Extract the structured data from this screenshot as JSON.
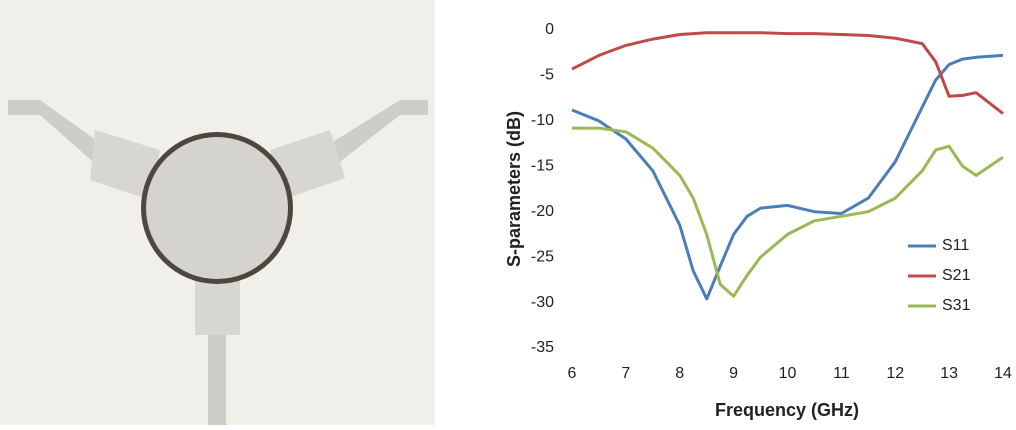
{
  "chart_data": {
    "type": "line",
    "x_label": "Frequency (GHz)",
    "y_label": "S-parameters (dB)",
    "x": [
      6,
      6.5,
      7,
      7.5,
      8,
      8.25,
      8.5,
      8.75,
      9,
      9.25,
      9.5,
      10,
      10.5,
      11,
      11.5,
      12,
      12.5,
      12.75,
      13,
      13.25,
      13.5,
      14
    ],
    "series": [
      {
        "name": "S11",
        "color": "#4a7ebb",
        "values": [
          -8.8,
          -10,
          -12,
          -15.5,
          -21.5,
          -26.5,
          -29.6,
          -26,
          -22.5,
          -20.5,
          -19.6,
          -19.3,
          -20,
          -20.2,
          -18.5,
          -14.5,
          -8.5,
          -5.5,
          -3.8,
          -3.2,
          -3,
          -2.8
        ]
      },
      {
        "name": "S21",
        "color": "#be4b48",
        "values": [
          -4.3,
          -2.8,
          -1.7,
          -1,
          -0.5,
          -0.4,
          -0.3,
          -0.3,
          -0.3,
          -0.3,
          -0.3,
          -0.4,
          -0.4,
          -0.5,
          -0.6,
          -0.9,
          -1.5,
          -3.5,
          -7.3,
          -7.2,
          -6.9,
          -9.2
        ]
      },
      {
        "name": "S31",
        "color": "#98b954",
        "values": [
          -10.8,
          -10.8,
          -11.2,
          -13,
          -16,
          -18.5,
          -22.5,
          -28,
          -29.3,
          -27,
          -25,
          -22.5,
          -21,
          -20.5,
          -20,
          -18.5,
          -15.5,
          -13.2,
          -12.8,
          -15,
          -16,
          -14
        ]
      }
    ],
    "xlim": [
      6,
      14
    ],
    "xticks": [
      6,
      7,
      8,
      9,
      10,
      11,
      12,
      13,
      14
    ],
    "ylim": [
      -35,
      0
    ],
    "yticks": [
      -35,
      -30,
      -25,
      -20,
      -15,
      -10,
      -5,
      0
    ],
    "legend": "lower right"
  }
}
